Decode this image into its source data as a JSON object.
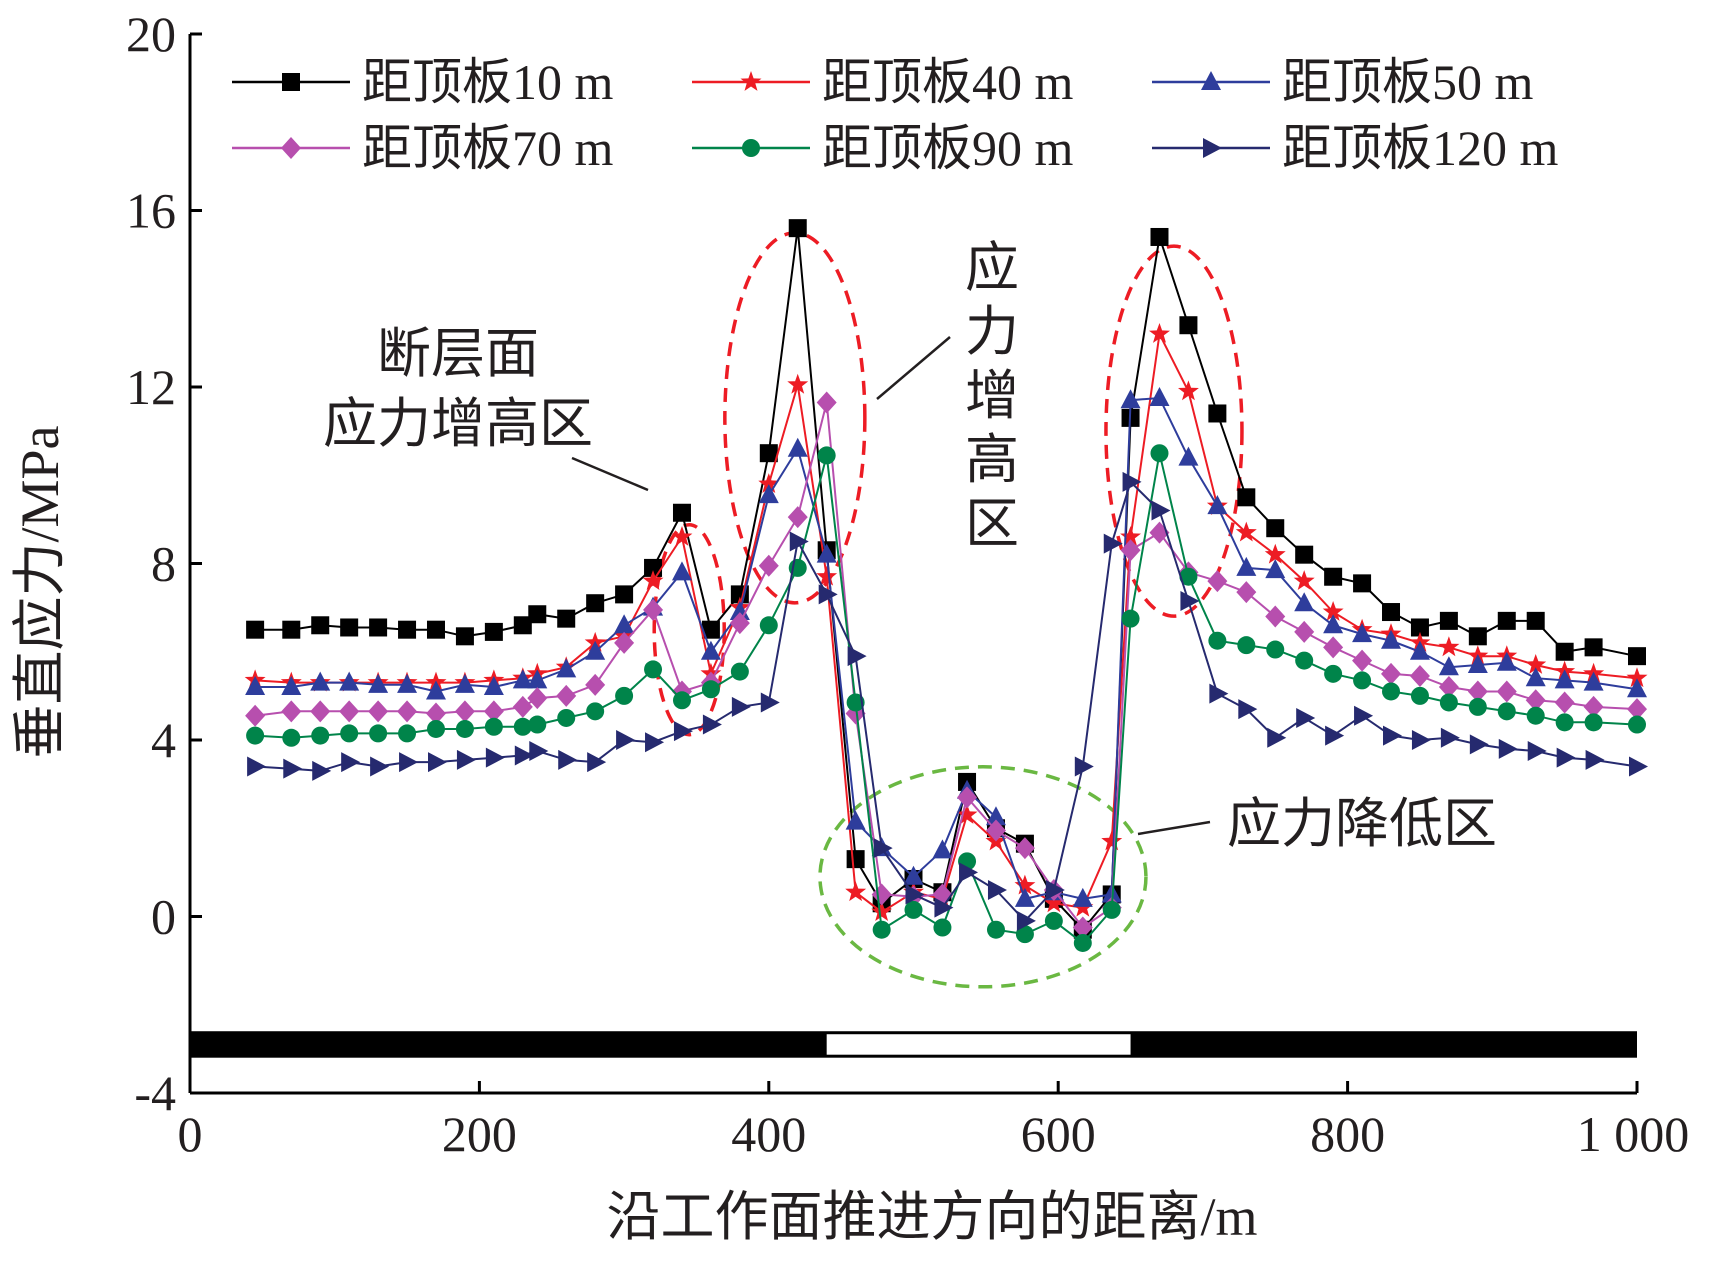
{
  "chart_data": {
    "type": "line",
    "xlabel": "沿工作面推进方向的距离/m",
    "ylabel": "垂直应力/MPa",
    "xlim": [
      0,
      1000
    ],
    "ylim": [
      -4,
      20
    ],
    "x_ticks": [
      "0",
      "200",
      "400",
      "600",
      "800",
      "1 000"
    ],
    "y_ticks": [
      "-4",
      "0",
      "4",
      "8",
      "12",
      "16",
      "20"
    ],
    "grid": false,
    "legend_position": "top",
    "x": [
      45,
      70,
      90,
      110,
      130,
      150,
      170,
      190,
      210,
      230,
      240,
      260,
      280,
      300,
      320,
      340,
      360,
      380,
      400,
      420,
      440,
      460,
      478,
      500,
      520,
      537,
      557,
      577,
      597,
      617,
      637,
      650,
      670,
      690,
      710,
      730,
      750,
      770,
      790,
      810,
      830,
      850,
      870,
      890,
      910,
      930,
      950,
      970,
      1000
    ],
    "series": [
      {
        "name": "距顶板10 m",
        "color": "#000000",
        "marker": "square",
        "values": [
          6.5,
          6.5,
          6.6,
          6.55,
          6.55,
          6.5,
          6.5,
          6.35,
          6.45,
          6.6,
          6.85,
          6.75,
          7.1,
          7.3,
          7.9,
          9.15,
          6.5,
          7.3,
          10.5,
          15.6,
          8.3,
          1.3,
          0.3,
          0.85,
          0.55,
          3.05,
          2.0,
          1.65,
          0.4,
          -0.3,
          0.5,
          11.3,
          15.4,
          13.4,
          11.4,
          9.5,
          8.8,
          8.2,
          7.7,
          7.55,
          6.9,
          6.55,
          6.7,
          6.35,
          6.7,
          6.7,
          6.0,
          6.1,
          5.9
        ]
      },
      {
        "name": "距顶板40 m",
        "color": "#ed1c24",
        "marker": "star",
        "values": [
          5.35,
          5.3,
          5.3,
          5.3,
          5.3,
          5.3,
          5.3,
          5.3,
          5.35,
          5.4,
          5.5,
          5.65,
          6.2,
          6.35,
          7.6,
          8.6,
          5.5,
          7.0,
          9.8,
          12.05,
          7.7,
          0.55,
          0.1,
          0.55,
          0.4,
          2.3,
          1.7,
          0.7,
          0.3,
          0.2,
          1.7,
          8.6,
          13.2,
          11.9,
          9.3,
          8.7,
          8.2,
          7.6,
          6.9,
          6.5,
          6.4,
          6.2,
          6.1,
          5.9,
          5.9,
          5.7,
          5.55,
          5.5,
          5.4
        ]
      },
      {
        "name": "距顶板50 m",
        "color": "#2e3d9c",
        "marker": "triangle",
        "values": [
          5.2,
          5.2,
          5.3,
          5.3,
          5.25,
          5.25,
          5.1,
          5.25,
          5.2,
          5.35,
          5.35,
          5.6,
          6.0,
          6.6,
          7.0,
          7.8,
          6.0,
          6.9,
          9.55,
          10.6,
          8.2,
          2.15,
          1.55,
          0.9,
          1.5,
          2.85,
          2.25,
          0.4,
          0.55,
          0.4,
          0.5,
          11.7,
          11.75,
          10.4,
          9.3,
          7.9,
          7.85,
          7.1,
          6.6,
          6.4,
          6.25,
          6.0,
          5.65,
          5.7,
          5.75,
          5.4,
          5.35,
          5.3,
          5.15
        ]
      },
      {
        "name": "距顶板70 m",
        "color": "#b74fae",
        "marker": "diamond",
        "values": [
          4.55,
          4.65,
          4.65,
          4.65,
          4.65,
          4.65,
          4.6,
          4.65,
          4.65,
          4.75,
          4.95,
          5.0,
          5.25,
          6.2,
          6.95,
          5.1,
          5.3,
          6.65,
          7.95,
          9.05,
          11.65,
          4.6,
          0.5,
          0.45,
          0.5,
          2.7,
          1.95,
          1.55,
          0.6,
          -0.25,
          0.2,
          8.3,
          8.7,
          7.8,
          7.6,
          7.35,
          6.8,
          6.45,
          6.1,
          5.8,
          5.5,
          5.45,
          5.2,
          5.1,
          5.1,
          4.9,
          4.85,
          4.75,
          4.7
        ]
      },
      {
        "name": "距顶板90 m",
        "color": "#00844a",
        "marker": "circle",
        "values": [
          4.1,
          4.05,
          4.1,
          4.15,
          4.15,
          4.15,
          4.25,
          4.25,
          4.3,
          4.3,
          4.35,
          4.5,
          4.65,
          5.0,
          5.6,
          4.9,
          5.15,
          5.55,
          6.6,
          7.9,
          10.45,
          4.85,
          -0.3,
          0.15,
          -0.25,
          1.25,
          -0.3,
          -0.4,
          -0.1,
          -0.6,
          0.15,
          6.75,
          10.5,
          7.7,
          6.25,
          6.15,
          6.05,
          5.8,
          5.5,
          5.35,
          5.1,
          5.0,
          4.85,
          4.75,
          4.65,
          4.55,
          4.4,
          4.4,
          4.35
        ]
      },
      {
        "name": "距顶板120 m",
        "color": "#262a6f",
        "marker": "triangle-right",
        "values": [
          3.4,
          3.35,
          3.3,
          3.5,
          3.4,
          3.5,
          3.5,
          3.55,
          3.6,
          3.65,
          3.75,
          3.55,
          3.5,
          4.0,
          3.95,
          4.2,
          4.35,
          4.75,
          4.85,
          8.5,
          7.3,
          5.9,
          1.55,
          0.5,
          0.2,
          1.0,
          0.6,
          -0.1,
          0.6,
          3.4,
          8.45,
          9.85,
          9.2,
          7.15,
          5.05,
          4.7,
          4.05,
          4.5,
          4.1,
          4.55,
          4.1,
          4.0,
          4.05,
          3.9,
          3.8,
          3.75,
          3.6,
          3.55,
          3.4
        ]
      }
    ],
    "annotations": [
      {
        "label": "断层面",
        "color": "#231f20"
      },
      {
        "label": "应力增高区",
        "color": "#231f20"
      },
      {
        "label": "应力增高区",
        "color": "#231f20"
      },
      {
        "label": "应力降低区",
        "color": "#231f20"
      }
    ],
    "highlight_colors": {
      "increase_zone": "#ed1c24",
      "decrease_zone": "#6ab842"
    },
    "workface_bar": {
      "solid_color": "#000000",
      "gap_color": "#ffffff",
      "gap_x": [
        440,
        650
      ]
    }
  }
}
